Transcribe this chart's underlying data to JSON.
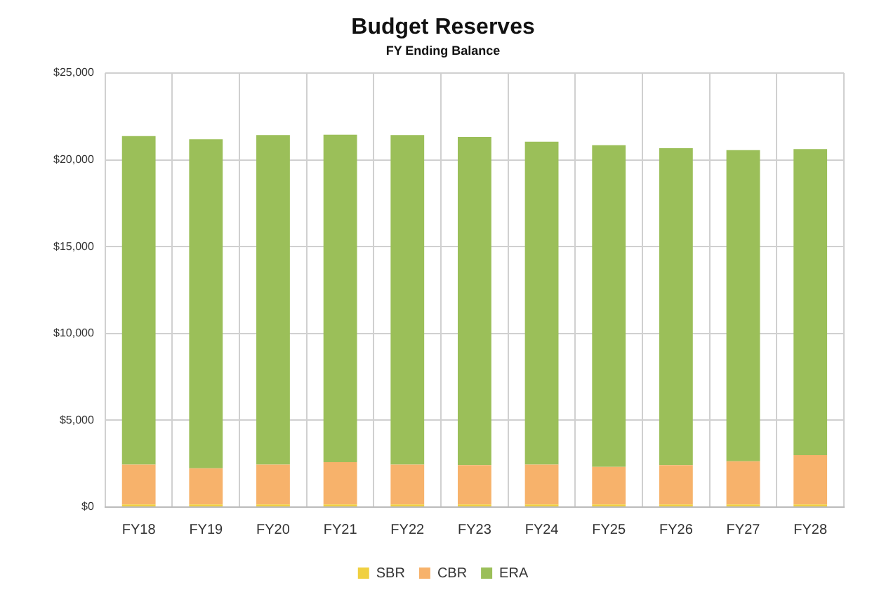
{
  "chart_data": {
    "type": "bar",
    "title": "Budget Reserves",
    "subtitle": "FY Ending Balance",
    "stacked": true,
    "categories": [
      "FY18",
      "FY19",
      "FY20",
      "FY21",
      "FY22",
      "FY23",
      "FY24",
      "FY25",
      "FY26",
      "FY27",
      "FY28"
    ],
    "series": [
      {
        "name": "SBR",
        "color": "#f0d040",
        "values": [
          150,
          150,
          150,
          150,
          150,
          150,
          150,
          150,
          150,
          150,
          150
        ]
      },
      {
        "name": "CBR",
        "color": "#f7b26b",
        "values": [
          2300,
          2090,
          2300,
          2440,
          2300,
          2270,
          2300,
          2170,
          2270,
          2490,
          2840
        ]
      },
      {
        "name": "ERA",
        "color": "#9bbf59",
        "values": [
          18920,
          18950,
          18980,
          18860,
          18980,
          18900,
          18600,
          18520,
          18250,
          17920,
          17630
        ]
      }
    ],
    "ylim": [
      0,
      25000
    ],
    "yticks": [
      {
        "value": 0,
        "label": "$0"
      },
      {
        "value": 5000,
        "label": "$5,000"
      },
      {
        "value": 10000,
        "label": "$10,000"
      },
      {
        "value": 15000,
        "label": "$15,000"
      },
      {
        "value": 20000,
        "label": "$20,000"
      },
      {
        "value": 25000,
        "label": "$25,000"
      }
    ],
    "grid": true,
    "legend": "bottom"
  }
}
